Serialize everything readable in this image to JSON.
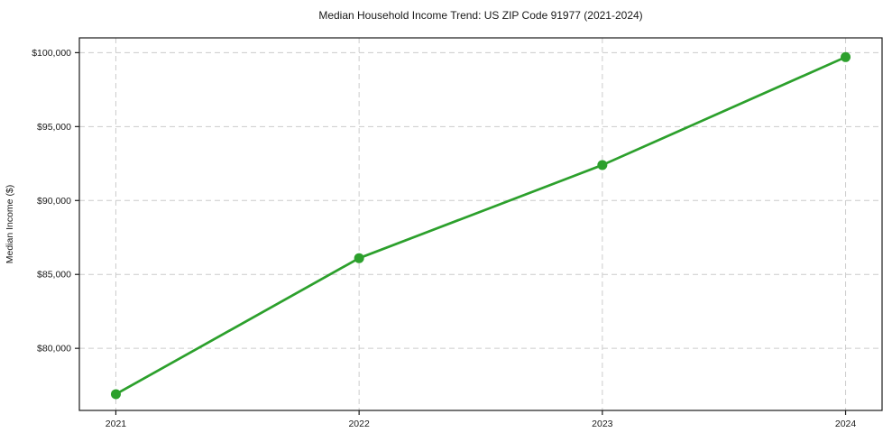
{
  "chart_data": {
    "type": "line",
    "title": "Median Household Income Trend: US ZIP Code 91977 (2021-2024)",
    "xlabel": "",
    "ylabel": "Median Income ($)",
    "x": [
      2021,
      2022,
      2023,
      2024
    ],
    "x_tick_labels": [
      "2021",
      "2022",
      "2023",
      "2024"
    ],
    "series": [
      {
        "name": "Median household income",
        "values": [
          76900,
          86100,
          92400,
          99700
        ]
      }
    ],
    "y_ticks": [
      80000,
      85000,
      90000,
      95000,
      100000
    ],
    "y_tick_labels": [
      "$80,000",
      "$85,000",
      "$90,000",
      "$95,000",
      "$100,000"
    ],
    "xlim": [
      2020.85,
      2024.15
    ],
    "ylim": [
      75800,
      101000
    ],
    "grid": true,
    "legend": "none",
    "line_color": "#2ca02c",
    "marker_color": "#2ca02c",
    "grid_color": "#cccccc",
    "spine_color": "#1a1a1a"
  }
}
